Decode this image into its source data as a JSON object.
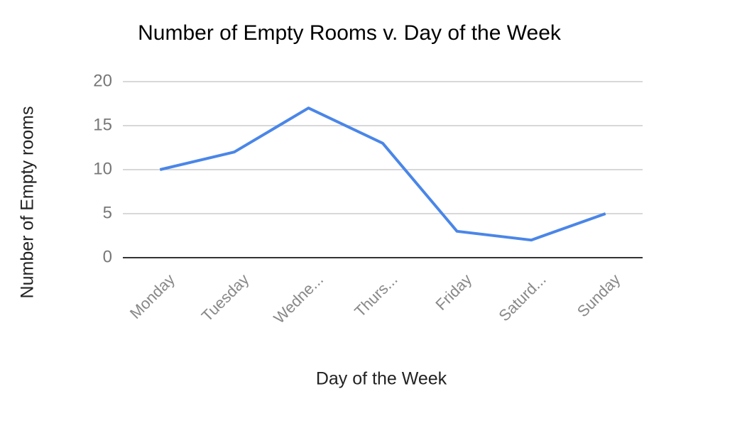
{
  "chart_data": {
    "type": "line",
    "title": "Number of Empty Rooms v. Day of the Week",
    "x_label": "Day of the Week",
    "y_label": "Number of Empty rooms",
    "categories": [
      "Monday",
      "Tuesday",
      "Wedne...",
      "Thurs...",
      "Friday",
      "Saturd...",
      "Sunday"
    ],
    "values": [
      10,
      12,
      17,
      13,
      3,
      2,
      5
    ],
    "color": "#4a86e8",
    "ylim": [
      0,
      20
    ],
    "yticks": [
      0,
      5,
      10,
      15,
      20
    ],
    "grid": true
  }
}
